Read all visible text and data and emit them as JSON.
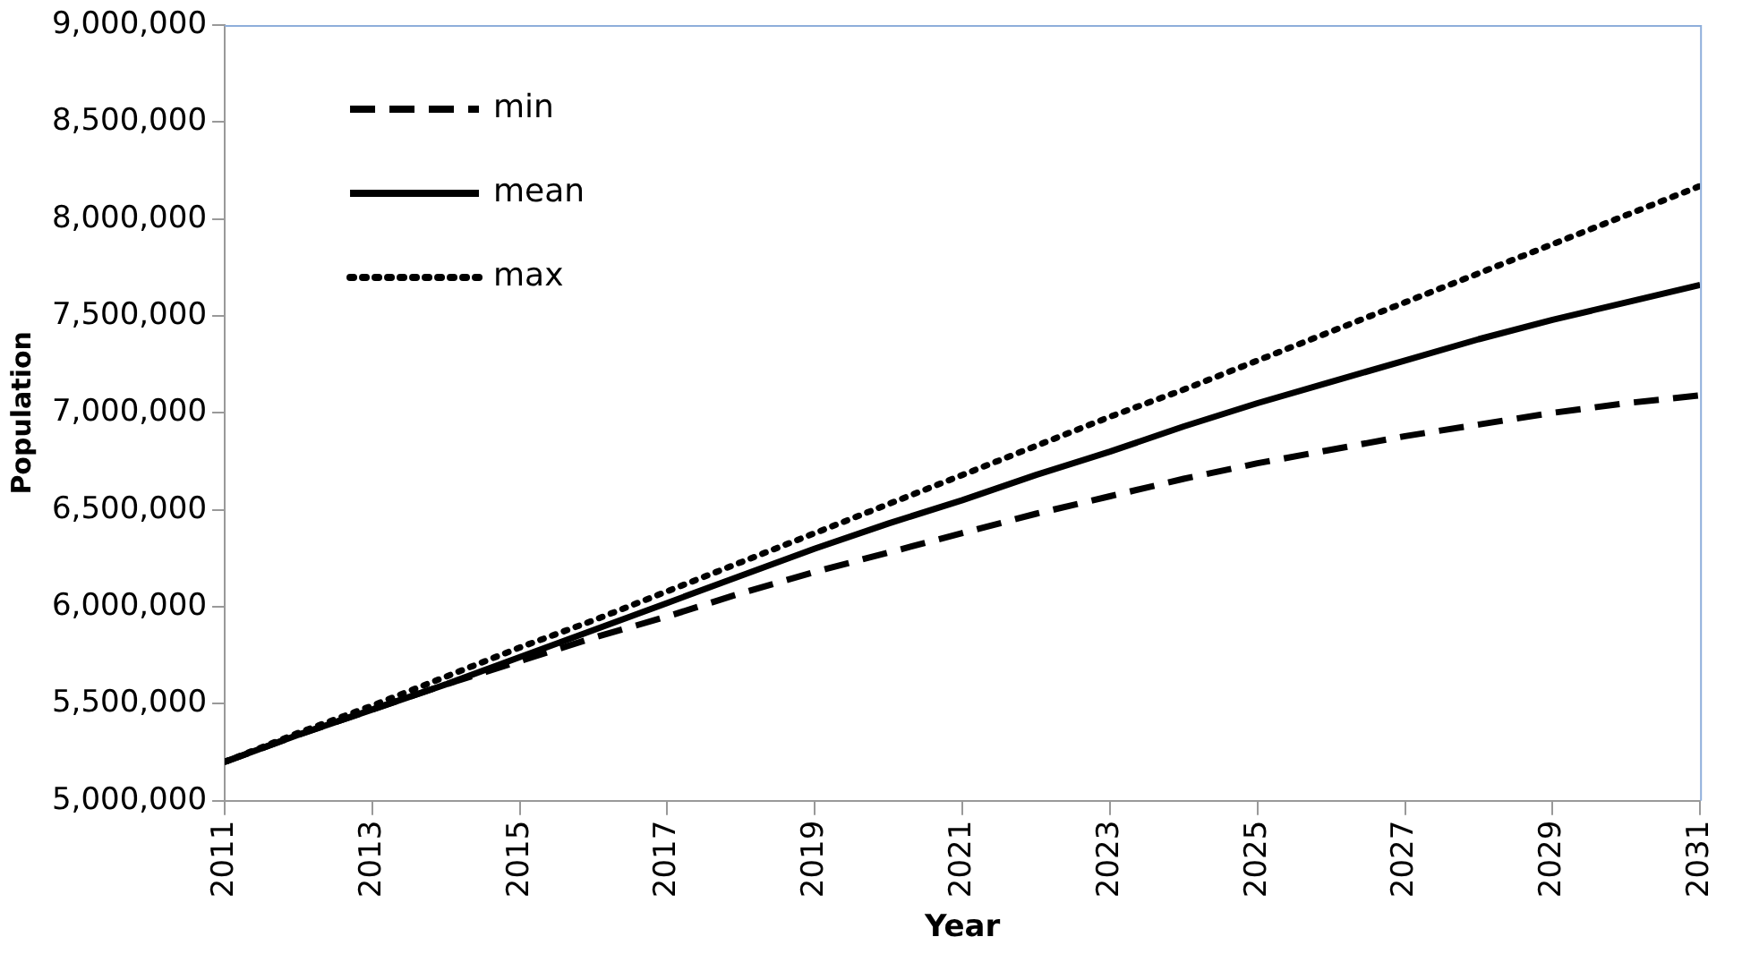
{
  "chart_data": {
    "type": "line",
    "xlabel": "Year",
    "ylabel": "Population",
    "x": [
      2011,
      2012,
      2013,
      2014,
      2015,
      2016,
      2017,
      2018,
      2019,
      2020,
      2021,
      2022,
      2023,
      2024,
      2025,
      2026,
      2027,
      2028,
      2029,
      2030,
      2031
    ],
    "xlim": [
      2011,
      2031
    ],
    "xticks": [
      2011,
      2013,
      2015,
      2017,
      2019,
      2021,
      2023,
      2025,
      2027,
      2029,
      2031
    ],
    "ylim": [
      5000000,
      9000000
    ],
    "yticks": [
      {
        "value": 5000000,
        "label": "5,000,000"
      },
      {
        "value": 5500000,
        "label": "5,500,000"
      },
      {
        "value": 6000000,
        "label": "6,000,000"
      },
      {
        "value": 6500000,
        "label": "6,500,000"
      },
      {
        "value": 7000000,
        "label": "7,000,000"
      },
      {
        "value": 7500000,
        "label": "7,500,000"
      },
      {
        "value": 8000000,
        "label": "8,000,000"
      },
      {
        "value": 8500000,
        "label": "8,500,000"
      },
      {
        "value": 9000000,
        "label": "9,000,000"
      }
    ],
    "grid": false,
    "legend": "top left",
    "marker": "none",
    "series": [
      {
        "name": "min",
        "color": "#000000",
        "line_style": "dashed",
        "values": [
          5200000,
          5340000,
          5470000,
          5600000,
          5720000,
          5840000,
          5950000,
          6070000,
          6180000,
          6280000,
          6380000,
          6480000,
          6570000,
          6660000,
          6740000,
          6810000,
          6880000,
          6940000,
          7000000,
          7050000,
          7090000
        ]
      },
      {
        "name": "mean",
        "color": "#000000",
        "line_style": "solid",
        "values": [
          5200000,
          5340000,
          5470000,
          5600000,
          5740000,
          5880000,
          6020000,
          6160000,
          6300000,
          6430000,
          6550000,
          6680000,
          6800000,
          6930000,
          7050000,
          7160000,
          7270000,
          7380000,
          7480000,
          7570000,
          7660000
        ]
      },
      {
        "name": "max",
        "color": "#000000",
        "line_style": "dotted",
        "values": [
          5200000,
          5350000,
          5490000,
          5640000,
          5790000,
          5930000,
          6080000,
          6230000,
          6380000,
          6530000,
          6680000,
          6830000,
          6980000,
          7120000,
          7270000,
          7420000,
          7570000,
          7720000,
          7870000,
          8020000,
          8170000
        ]
      }
    ]
  }
}
